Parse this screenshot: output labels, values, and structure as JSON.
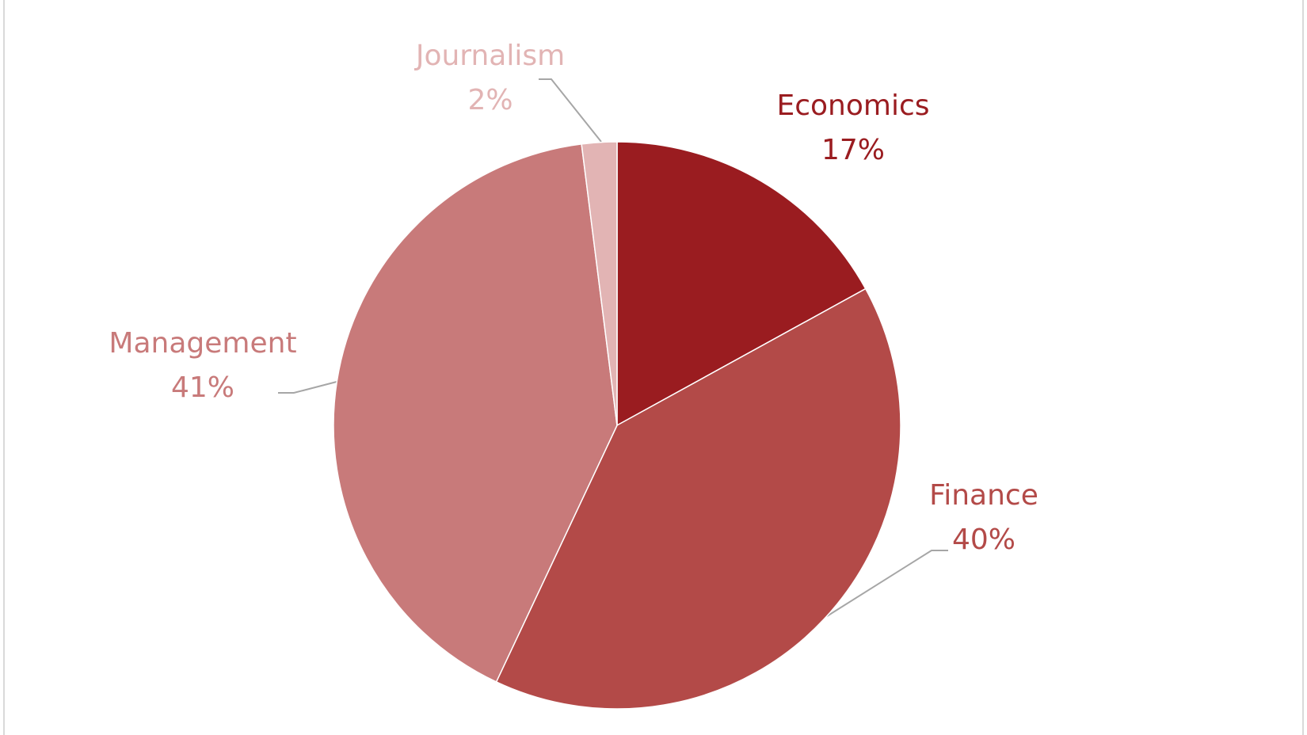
{
  "chart_data": {
    "type": "pie",
    "categories": [
      "Economics",
      "Finance",
      "Management",
      "Journalism"
    ],
    "values": [
      17,
      40,
      41,
      2
    ],
    "value_labels": [
      "17%",
      "40%",
      "41%",
      "2%"
    ],
    "colors": [
      "#9a1c20",
      "#b34a48",
      "#c87a7a",
      "#e2b4b4"
    ]
  }
}
